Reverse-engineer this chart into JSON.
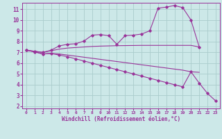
{
  "bg_color": "#cce8e8",
  "grid_color": "#aacccc",
  "line_color": "#993399",
  "xlabel": "Windchill (Refroidissement éolien,°C)",
  "ylim": [
    1.8,
    11.6
  ],
  "xlim": [
    -0.5,
    23.5
  ],
  "yticks": [
    2,
    3,
    4,
    5,
    6,
    7,
    8,
    9,
    10,
    11
  ],
  "xticks": [
    0,
    1,
    2,
    3,
    4,
    5,
    6,
    7,
    8,
    9,
    10,
    11,
    12,
    13,
    14,
    15,
    16,
    17,
    18,
    19,
    20,
    21,
    22,
    23
  ],
  "series": [
    {
      "x": [
        0,
        1,
        2,
        3,
        4,
        5,
        6,
        7,
        8,
        9,
        10,
        11,
        12,
        13,
        14,
        15,
        16,
        17,
        18,
        19,
        20,
        21
      ],
      "y": [
        7.2,
        7.1,
        7.0,
        7.2,
        7.6,
        7.75,
        7.8,
        8.05,
        8.6,
        8.65,
        8.55,
        7.75,
        8.55,
        8.6,
        8.7,
        9.0,
        11.1,
        11.2,
        11.35,
        11.15,
        10.0,
        7.5
      ],
      "has_markers": true
    },
    {
      "x": [
        0,
        1,
        2,
        3,
        4,
        5,
        6,
        7,
        8,
        9,
        10,
        11,
        12,
        13,
        14,
        15,
        16,
        17,
        18,
        19,
        20,
        21
      ],
      "y": [
        7.2,
        7.1,
        7.0,
        7.15,
        7.3,
        7.4,
        7.45,
        7.5,
        7.55,
        7.58,
        7.6,
        7.62,
        7.63,
        7.64,
        7.65,
        7.65,
        7.65,
        7.65,
        7.65,
        7.65,
        7.65,
        7.5
      ],
      "has_markers": false
    },
    {
      "x": [
        0,
        1,
        2,
        3,
        4,
        5,
        6,
        7,
        8,
        9,
        10,
        11,
        12,
        13,
        14,
        15,
        16,
        17,
        18,
        19,
        20,
        21,
        22,
        23
      ],
      "y": [
        7.2,
        7.05,
        6.85,
        6.9,
        6.85,
        6.75,
        6.65,
        6.55,
        6.45,
        6.35,
        6.25,
        6.15,
        6.05,
        5.95,
        5.85,
        5.75,
        5.65,
        5.55,
        5.45,
        5.35,
        5.2,
        5.15,
        null,
        null
      ],
      "has_markers": false
    },
    {
      "x": [
        0,
        1,
        2,
        3,
        4,
        5,
        6,
        7,
        8,
        9,
        10,
        11,
        12,
        13,
        14,
        15,
        16,
        17,
        18,
        19,
        20,
        21,
        22,
        23
      ],
      "y": [
        7.2,
        7.05,
        6.85,
        6.9,
        6.75,
        6.6,
        6.4,
        6.2,
        6.0,
        5.8,
        5.6,
        5.4,
        5.2,
        5.0,
        4.8,
        4.6,
        4.4,
        4.2,
        4.0,
        3.8,
        5.2,
        4.15,
        3.2,
        2.5
      ],
      "has_markers": true
    }
  ]
}
